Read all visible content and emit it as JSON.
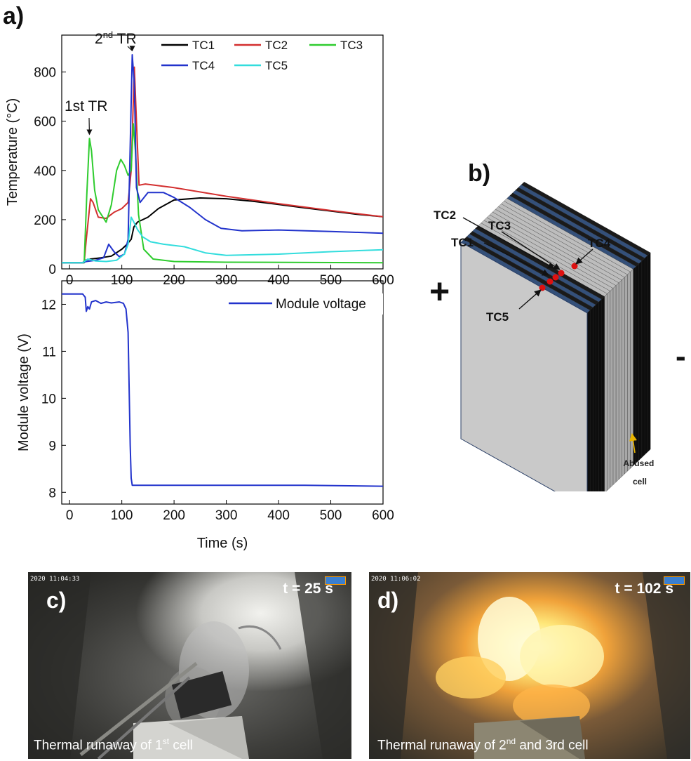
{
  "panel_labels": {
    "a": "a)",
    "b": "b)",
    "c": "c)",
    "d": "d)"
  },
  "chart_data": [
    {
      "type": "line",
      "xlabel": "",
      "ylabel": "Temperature (°C)",
      "xlim": [
        -15,
        600
      ],
      "ylim": [
        0,
        950
      ],
      "xticks": [
        "0",
        "100",
        "200",
        "300",
        "400",
        "500",
        "600"
      ],
      "yticks": [
        "0",
        "200",
        "400",
        "600",
        "800"
      ],
      "annotations": [
        {
          "text": "1st TR",
          "x": 38,
          "y": 535
        },
        {
          "text": "2",
          "sup": "nd",
          "rest": " TR",
          "x": 120,
          "y": 875
        }
      ],
      "series": [
        {
          "name": "TC1",
          "color": "#000000",
          "points": [
            [
              -15,
              25
            ],
            [
              25,
              25
            ],
            [
              30,
              35
            ],
            [
              40,
              40
            ],
            [
              60,
              45
            ],
            [
              80,
              52
            ],
            [
              100,
              80
            ],
            [
              110,
              100
            ],
            [
              118,
              120
            ],
            [
              123,
              170
            ],
            [
              130,
              190
            ],
            [
              150,
              210
            ],
            [
              170,
              245
            ],
            [
              200,
              280
            ],
            [
              250,
              288
            ],
            [
              300,
              285
            ],
            [
              350,
              275
            ],
            [
              400,
              262
            ],
            [
              450,
              248
            ],
            [
              500,
              235
            ],
            [
              550,
              222
            ],
            [
              600,
              212
            ]
          ]
        },
        {
          "name": "TC2",
          "color": "#d32f2f",
          "points": [
            [
              -15,
              25
            ],
            [
              28,
              25
            ],
            [
              32,
              120
            ],
            [
              40,
              285
            ],
            [
              45,
              270
            ],
            [
              55,
              210
            ],
            [
              70,
              205
            ],
            [
              85,
              230
            ],
            [
              100,
              245
            ],
            [
              112,
              270
            ],
            [
              118,
              400
            ],
            [
              124,
              820
            ],
            [
              128,
              600
            ],
            [
              133,
              340
            ],
            [
              145,
              345
            ],
            [
              200,
              330
            ],
            [
              300,
              295
            ],
            [
              400,
              265
            ],
            [
              500,
              237
            ],
            [
              600,
              212
            ]
          ]
        },
        {
          "name": "TC3",
          "color": "#2ecc2e",
          "points": [
            [
              -15,
              25
            ],
            [
              28,
              25
            ],
            [
              33,
              300
            ],
            [
              38,
              530
            ],
            [
              42,
              480
            ],
            [
              48,
              320
            ],
            [
              55,
              240
            ],
            [
              70,
              190
            ],
            [
              80,
              260
            ],
            [
              90,
              400
            ],
            [
              98,
              445
            ],
            [
              105,
              420
            ],
            [
              112,
              380
            ],
            [
              118,
              400
            ],
            [
              122,
              590
            ],
            [
              126,
              480
            ],
            [
              132,
              220
            ],
            [
              142,
              80
            ],
            [
              160,
              40
            ],
            [
              200,
              30
            ],
            [
              300,
              27
            ],
            [
              600,
              25
            ]
          ]
        },
        {
          "name": "TC4",
          "color": "#2233cc",
          "points": [
            [
              -15,
              25
            ],
            [
              25,
              25
            ],
            [
              32,
              30
            ],
            [
              50,
              35
            ],
            [
              65,
              45
            ],
            [
              75,
              100
            ],
            [
              85,
              70
            ],
            [
              95,
              50
            ],
            [
              105,
              60
            ],
            [
              112,
              120
            ],
            [
              116,
              500
            ],
            [
              120,
              870
            ],
            [
              124,
              750
            ],
            [
              128,
              330
            ],
            [
              135,
              270
            ],
            [
              150,
              310
            ],
            [
              180,
              310
            ],
            [
              200,
              290
            ],
            [
              230,
              250
            ],
            [
              260,
              200
            ],
            [
              290,
              165
            ],
            [
              330,
              155
            ],
            [
              400,
              158
            ],
            [
              500,
              152
            ],
            [
              600,
              145
            ]
          ]
        },
        {
          "name": "TC5",
          "color": "#33dddd",
          "points": [
            [
              -15,
              25
            ],
            [
              25,
              25
            ],
            [
              35,
              40
            ],
            [
              50,
              32
            ],
            [
              70,
              30
            ],
            [
              90,
              35
            ],
            [
              105,
              60
            ],
            [
              112,
              100
            ],
            [
              118,
              210
            ],
            [
              123,
              190
            ],
            [
              130,
              160
            ],
            [
              140,
              130
            ],
            [
              155,
              110
            ],
            [
              180,
              100
            ],
            [
              220,
              90
            ],
            [
              260,
              65
            ],
            [
              300,
              55
            ],
            [
              400,
              60
            ],
            [
              500,
              70
            ],
            [
              600,
              78
            ]
          ]
        }
      ]
    },
    {
      "type": "line",
      "xlabel": "Time (s)",
      "ylabel": "Module voltage (V)",
      "xlim": [
        -15,
        600
      ],
      "ylim": [
        7.75,
        12.5
      ],
      "xticks": [
        "0",
        "100",
        "200",
        "300",
        "400",
        "500",
        "600"
      ],
      "yticks": [
        "8",
        "9",
        "10",
        "11",
        "12"
      ],
      "series": [
        {
          "name": "Module voltage",
          "color": "#2233cc",
          "points": [
            [
              -15,
              12.22
            ],
            [
              25,
              12.22
            ],
            [
              30,
              12.15
            ],
            [
              32,
              11.85
            ],
            [
              35,
              11.95
            ],
            [
              38,
              11.9
            ],
            [
              42,
              12.05
            ],
            [
              50,
              12.08
            ],
            [
              60,
              12.02
            ],
            [
              70,
              12.05
            ],
            [
              80,
              12.03
            ],
            [
              95,
              12.05
            ],
            [
              103,
              12.02
            ],
            [
              108,
              11.9
            ],
            [
              112,
              11.4
            ],
            [
              114,
              10.2
            ],
            [
              116,
              9.0
            ],
            [
              118,
              8.3
            ],
            [
              120,
              8.15
            ],
            [
              150,
              8.15
            ],
            [
              300,
              8.15
            ],
            [
              450,
              8.15
            ],
            [
              600,
              8.13
            ]
          ]
        }
      ]
    }
  ],
  "diagram": {
    "labels": {
      "tc1": "TC1",
      "tc2": "TC2",
      "tc3": "TC3",
      "tc4": "TC4",
      "tc5": "TC5"
    },
    "plus": "+",
    "minus": "-",
    "abused_line1": "Abused",
    "abused_line2": "cell",
    "colors": {
      "face": "#c9c9c9",
      "blue": "#34507a",
      "dot": "#dd1111",
      "arrow": "#e8b400"
    }
  },
  "photos": {
    "c": {
      "timestamp": "2020 11:04:33",
      "time_label": "t = 25 s",
      "caption_pre": "Thermal runaway of 1",
      "caption_sup": "st",
      "caption_post": " cell"
    },
    "d": {
      "timestamp": "2020 11:06:02",
      "time_label": "t = 102 s",
      "caption_pre": "Thermal runaway of 2",
      "caption_sup": "nd",
      "caption_post": "  and 3rd cell"
    }
  }
}
